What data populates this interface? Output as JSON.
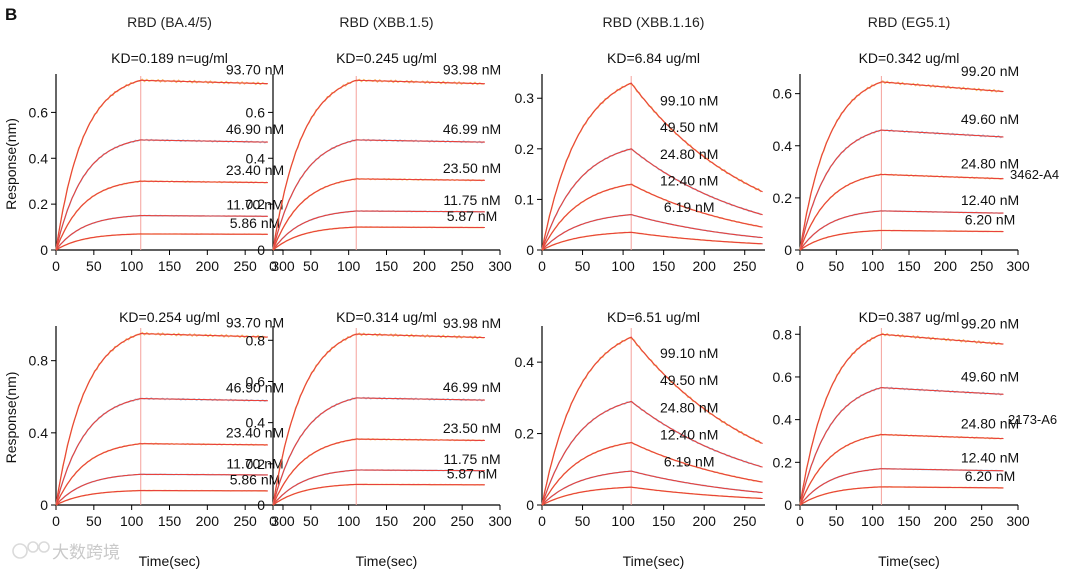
{
  "figure": {
    "panel_letter": "B",
    "ylabel": "Response(nm)",
    "xlabel": "Time(sec)",
    "row_labels": [
      "3462-A4",
      "2173-A6"
    ],
    "watermark": "大数跨境",
    "colors": {
      "fit": "#e8413c",
      "fit_faint": "#f5a19b",
      "data_orange": "#f4a63a",
      "data_blue": "#8fb1d8",
      "axis": "#000000"
    }
  },
  "chart_data": [
    {
      "type": "line",
      "row": 0,
      "col": 0,
      "title": "RBD (BA.4/5)",
      "kd": "KD=0.189 n=ug/ml",
      "xlabel": "",
      "ylabel": "Response(nm)",
      "xlim": [
        0,
        300
      ],
      "ylim": [
        0,
        0.75
      ],
      "xticks": [
        0,
        50,
        100,
        150,
        200,
        250,
        300
      ],
      "yticks": [
        0,
        0.2,
        0.4,
        0.6
      ],
      "ytick_labels": [
        "0",
        "0.2",
        "0.4",
        "0.6"
      ],
      "assoc_end": 112,
      "end": 280,
      "k_on": 0.028,
      "k_off": 0.00012,
      "series": [
        {
          "name": "93.70 nM",
          "peak": 0.74
        },
        {
          "name": "46.90 nM",
          "peak": 0.48
        },
        {
          "name": "23.40 nM",
          "peak": 0.3
        },
        {
          "name": "11.70 nM",
          "peak": 0.15
        },
        {
          "name": "5.86 nM",
          "peak": 0.07
        }
      ]
    },
    {
      "type": "line",
      "row": 0,
      "col": 1,
      "title": "RBD (XBB.1.5)",
      "kd": "KD=0.245 ug/ml",
      "xlabel": "",
      "ylabel": "",
      "xlim": [
        0,
        300
      ],
      "ylim": [
        0,
        0.75
      ],
      "xticks": [
        0,
        50,
        100,
        150,
        200,
        250,
        300
      ],
      "yticks": [
        0,
        0.2,
        0.4,
        0.6
      ],
      "ytick_labels": [
        "0",
        "0.2",
        "0.4",
        "0.6"
      ],
      "assoc_end": 110,
      "end": 280,
      "k_on": 0.026,
      "k_off": 0.00012,
      "series": [
        {
          "name": "93.98 nM",
          "peak": 0.74
        },
        {
          "name": "46.99 nM",
          "peak": 0.48
        },
        {
          "name": "23.50 nM",
          "peak": 0.31
        },
        {
          "name": "11.75 nM",
          "peak": 0.17
        },
        {
          "name": "5.87 nM",
          "peak": 0.1
        }
      ]
    },
    {
      "type": "line",
      "row": 0,
      "col": 2,
      "title": "RBD (XBB.1.16)",
      "kd": "KD=6.84 ug/ml",
      "xlabel": "",
      "ylabel": "",
      "xlim": [
        0,
        275
      ],
      "ylim": [
        0,
        0.34
      ],
      "xticks": [
        0,
        50,
        100,
        150,
        200,
        250
      ],
      "yticks": [
        0,
        0.1,
        0.2,
        0.3
      ],
      "ytick_labels": [
        "0",
        "0.1",
        "0.2",
        "0.3"
      ],
      "assoc_end": 110,
      "end": 272,
      "k_on": 0.022,
      "k_off": 0.0065,
      "series": [
        {
          "name": "99.10 nM",
          "peak": 0.33
        },
        {
          "name": "49.50 nM",
          "peak": 0.2
        },
        {
          "name": "24.80 nM",
          "peak": 0.13
        },
        {
          "name": "12.40 nM",
          "peak": 0.07
        },
        {
          "name": "6.19 nM",
          "peak": 0.035
        }
      ]
    },
    {
      "type": "line",
      "row": 0,
      "col": 3,
      "title": "RBD (EG5.1)",
      "kd": "KD=0.342 ug/ml",
      "xlabel": "",
      "ylabel": "",
      "xlim": [
        0,
        300
      ],
      "ylim": [
        0,
        0.66
      ],
      "xticks": [
        0,
        50,
        100,
        150,
        200,
        250,
        300
      ],
      "yticks": [
        0,
        0.2,
        0.4,
        0.6
      ],
      "ytick_labels": [
        "0",
        "0.2",
        "0.4",
        "0.6"
      ],
      "assoc_end": 112,
      "end": 280,
      "k_on": 0.025,
      "k_off": 0.00035,
      "series": [
        {
          "name": "99.20 nM",
          "peak": 0.645
        },
        {
          "name": "49.60 nM",
          "peak": 0.46
        },
        {
          "name": "24.80 nM",
          "peak": 0.29
        },
        {
          "name": "12.40 nM",
          "peak": 0.15
        },
        {
          "name": "6.20 nM",
          "peak": 0.075
        }
      ]
    },
    {
      "type": "line",
      "row": 1,
      "col": 0,
      "title": "",
      "kd": "KD=0.254 ug/ml",
      "xlabel": "",
      "ylabel": "Response(nm)",
      "xlim": [
        0,
        300
      ],
      "ylim": [
        0,
        0.97
      ],
      "xticks": [
        0,
        50,
        100,
        150,
        200,
        250,
        300
      ],
      "yticks": [
        0,
        0.4,
        0.8
      ],
      "ytick_labels": [
        "0",
        "0.4",
        "0.8"
      ],
      "assoc_end": 112,
      "end": 280,
      "k_on": 0.026,
      "k_off": 0.00012,
      "series": [
        {
          "name": "93.70 nM",
          "peak": 0.95
        },
        {
          "name": "46.90 nM",
          "peak": 0.59
        },
        {
          "name": "23.40 nM",
          "peak": 0.34
        },
        {
          "name": "11.70 nM",
          "peak": 0.17
        },
        {
          "name": "5.86 nM",
          "peak": 0.08
        }
      ]
    },
    {
      "type": "line",
      "row": 1,
      "col": 1,
      "title": "",
      "kd": "KD=0.314 ug/ml",
      "xlabel": "",
      "ylabel": "",
      "xlim": [
        0,
        300
      ],
      "ylim": [
        0,
        0.85
      ],
      "xticks": [
        0,
        50,
        100,
        150,
        200,
        250,
        300
      ],
      "yticks": [
        0,
        0.2,
        0.4,
        0.6,
        0.8
      ],
      "ytick_labels": [
        "0",
        "0.2",
        "0.4",
        "0.6",
        "0.8"
      ],
      "assoc_end": 110,
      "end": 280,
      "k_on": 0.025,
      "k_off": 0.00012,
      "series": [
        {
          "name": "93.98 nM",
          "peak": 0.83
        },
        {
          "name": "46.99 nM",
          "peak": 0.52
        },
        {
          "name": "23.50 nM",
          "peak": 0.32
        },
        {
          "name": "11.75 nM",
          "peak": 0.17
        },
        {
          "name": "5.87 nM",
          "peak": 0.1
        }
      ]
    },
    {
      "type": "line",
      "row": 1,
      "col": 2,
      "title": "",
      "kd": "KD=6.51 ug/ml",
      "xlabel": "",
      "ylabel": "",
      "xlim": [
        0,
        275
      ],
      "ylim": [
        0,
        0.49
      ],
      "xticks": [
        0,
        50,
        100,
        150,
        200,
        250
      ],
      "yticks": [
        0,
        0.2,
        0.4
      ],
      "ytick_labels": [
        "0",
        "0.2",
        "0.4"
      ],
      "assoc_end": 110,
      "end": 272,
      "k_on": 0.022,
      "k_off": 0.0062,
      "series": [
        {
          "name": "99.10 nM",
          "peak": 0.47
        },
        {
          "name": "49.50 nM",
          "peak": 0.29
        },
        {
          "name": "24.80 nM",
          "peak": 0.175
        },
        {
          "name": "12.40 nM",
          "peak": 0.095
        },
        {
          "name": "6.19 nM",
          "peak": 0.05
        }
      ]
    },
    {
      "type": "line",
      "row": 1,
      "col": 3,
      "title": "",
      "kd": "KD=0.387 ug/ml",
      "xlabel": "",
      "ylabel": "",
      "xlim": [
        0,
        300
      ],
      "ylim": [
        0,
        0.82
      ],
      "xticks": [
        0,
        50,
        100,
        150,
        200,
        250,
        300
      ],
      "yticks": [
        0,
        0.2,
        0.4,
        0.6,
        0.8
      ],
      "ytick_labels": [
        "0",
        "0.2",
        "0.4",
        "0.6",
        "0.8"
      ],
      "assoc_end": 112,
      "end": 280,
      "k_on": 0.024,
      "k_off": 0.00035,
      "series": [
        {
          "name": "99.20 nM",
          "peak": 0.8
        },
        {
          "name": "49.60 nM",
          "peak": 0.55
        },
        {
          "name": "24.80 nM",
          "peak": 0.33
        },
        {
          "name": "12.40 nM",
          "peak": 0.17
        },
        {
          "name": "6.20 nM",
          "peak": 0.085
        }
      ]
    }
  ]
}
